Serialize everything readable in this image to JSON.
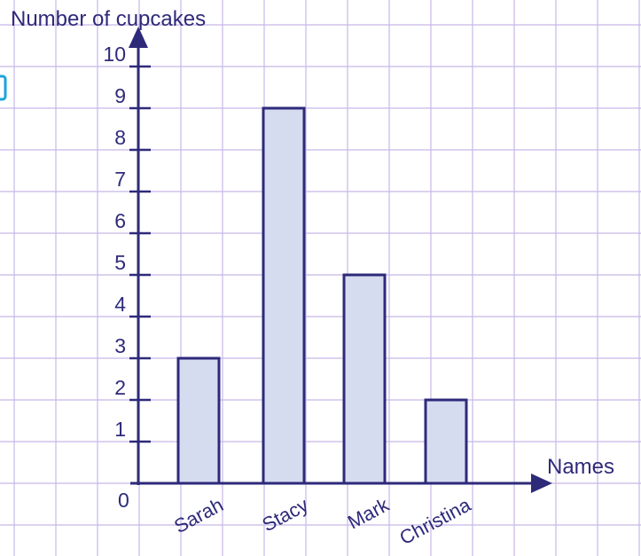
{
  "chart_data": {
    "type": "bar",
    "categories": [
      "Sarah",
      "Stacy",
      "Mark",
      "Christina"
    ],
    "values": [
      3,
      9,
      5,
      2
    ],
    "title": "",
    "xlabel": "Names",
    "ylabel": "Number of cupcakes",
    "ylim": [
      0,
      10
    ],
    "yticks": [
      1,
      2,
      3,
      4,
      5,
      6,
      7,
      8,
      9,
      10
    ],
    "origin_label": "0",
    "grid": true,
    "legend": "none",
    "colors": {
      "grid": "#c7b8e8",
      "axis": "#2e2a7a",
      "bar_fill": "#d6dcf0",
      "bar_stroke": "#2e2a7a",
      "text": "#2e2a7a",
      "edge_glyph": "#1aa3dc"
    }
  }
}
